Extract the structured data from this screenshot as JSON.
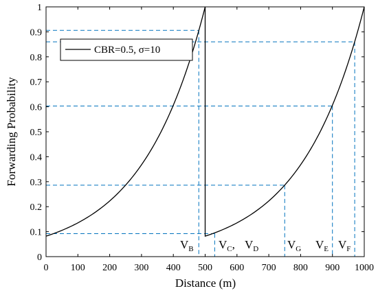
{
  "chart_data": {
    "type": "line",
    "xlabel": "Distance (m)",
    "ylabel": "Forwarding Probability",
    "xlim": [
      0,
      1000
    ],
    "ylim": [
      0,
      1
    ],
    "xticks": [
      0,
      100,
      200,
      300,
      400,
      500,
      600,
      700,
      800,
      900,
      1000
    ],
    "yticks": [
      0,
      0.1,
      0.2,
      0.3,
      0.4,
      0.5,
      0.6,
      0.7,
      0.8,
      0.9,
      1
    ],
    "xtick_labels": [
      "0",
      "100",
      "200",
      "300",
      "400",
      "500",
      "600",
      "700",
      "800",
      "900",
      "1000"
    ],
    "ytick_labels": [
      "0",
      "0.1",
      "0.2",
      "0.3",
      "0.4",
      "0.5",
      "0.6",
      "0.7",
      "0.8",
      "0.9",
      "1"
    ],
    "legend": {
      "label": "CBR=0.5, σ=10",
      "placement": "top-left"
    },
    "series": [
      {
        "name": "CBR=0.5, σ=10",
        "color": "#000000",
        "segments": [
          {
            "x_start": 0,
            "x_end": 500,
            "y_start": 0.082,
            "y_end": 1.0
          },
          {
            "x_start": 500,
            "x_end": 1000,
            "y_start": 0.082,
            "y_end": 1.0
          }
        ]
      }
    ],
    "markers": [
      {
        "name": "V",
        "sub": "B",
        "x": 480,
        "y": 0.906
      },
      {
        "name": "V",
        "sub": "C",
        "x": 530,
        "y": 0.092
      },
      {
        "name": "V",
        "sub": "D",
        "x": null,
        "y": null
      },
      {
        "name": "V",
        "sub": "G",
        "x": 750,
        "y": 0.286
      },
      {
        "name": "V",
        "sub": "E",
        "x": 900,
        "y": 0.603
      },
      {
        "name": "V",
        "sub": "F",
        "x": 970,
        "y": 0.86
      }
    ],
    "guide_color": "#0072BD"
  }
}
